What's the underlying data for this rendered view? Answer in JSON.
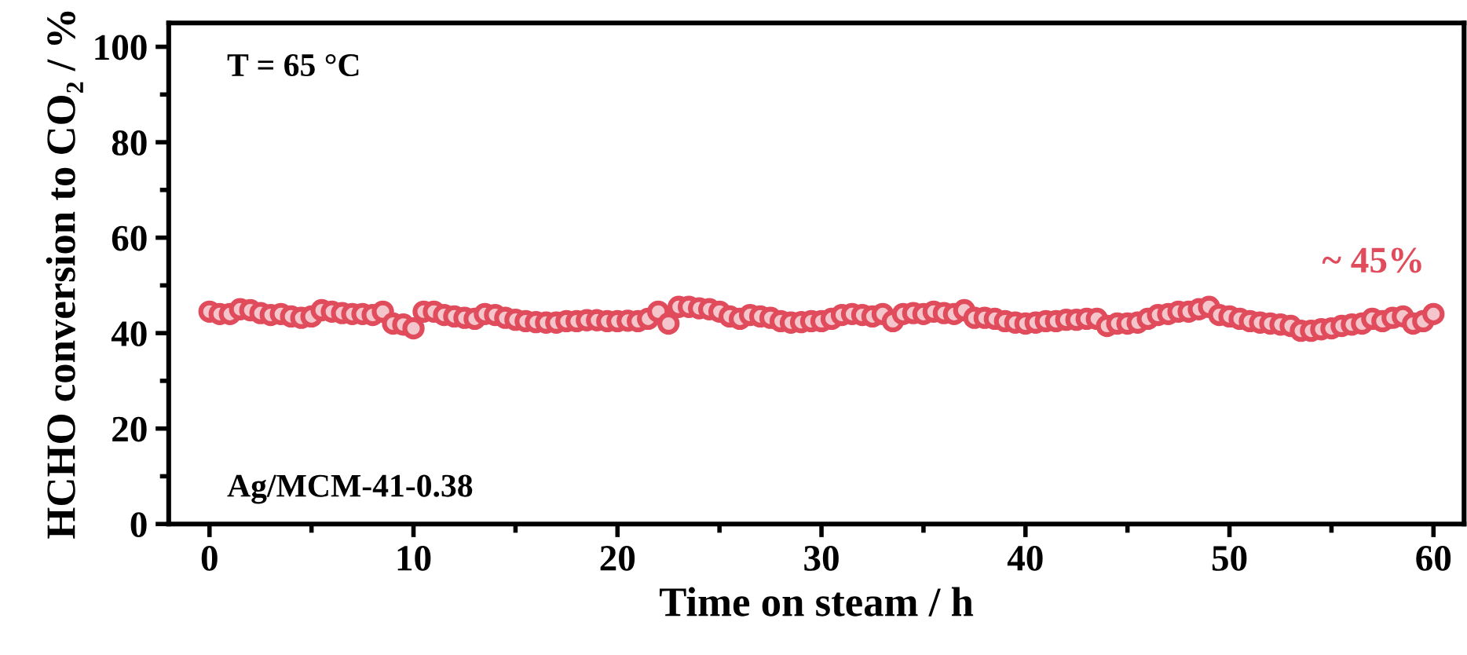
{
  "chart_data": {
    "type": "scatter",
    "xlabel": "Time on steam / h",
    "ylabel": "HCHO conversion to CO₂ / %",
    "annotations": [
      "T = 65 °C",
      "Ag/MCM-41-0.38",
      "~ 45%"
    ],
    "x": [
      0,
      0.5,
      1,
      1.5,
      2,
      2.5,
      3,
      3.5,
      4,
      4.5,
      5,
      5.5,
      6,
      6.5,
      7,
      7.5,
      8,
      8.5,
      9,
      9.5,
      10,
      10.5,
      11,
      11.5,
      12,
      12.5,
      13,
      13.5,
      14,
      14.5,
      15,
      15.5,
      16,
      16.5,
      17,
      17.5,
      18,
      18.5,
      19,
      19.5,
      20,
      20.5,
      21,
      21.5,
      22,
      22.5,
      23,
      23.5,
      24,
      24.5,
      25,
      25.5,
      26,
      26.5,
      27,
      27.5,
      28,
      28.5,
      29,
      29.5,
      30,
      30.5,
      31,
      31.5,
      32,
      32.5,
      33,
      33.5,
      34,
      34.5,
      35,
      35.5,
      36,
      36.5,
      37,
      37.5,
      38,
      38.5,
      39,
      39.5,
      40,
      40.5,
      41,
      41.5,
      42,
      42.5,
      43,
      43.5,
      44,
      44.5,
      45,
      45.5,
      46,
      46.5,
      47,
      47.5,
      48,
      48.5,
      49,
      49.5,
      50,
      50.5,
      51,
      51.5,
      52,
      52.5,
      53,
      53.5,
      54,
      54.5,
      55,
      55.5,
      56,
      56.5,
      57,
      57.5,
      58,
      58.5,
      59,
      59.5,
      60
    ],
    "series": [
      {
        "color": "#e04c5c",
        "values": [
          44.5,
          44,
          44,
          45,
          44.8,
          44.2,
          43.8,
          44,
          43.5,
          43.2,
          43.5,
          44.8,
          44.5,
          44.2,
          44,
          44,
          43.8,
          44.5,
          42,
          41.8,
          41,
          44.5,
          44.5,
          43.8,
          43.5,
          43.2,
          43,
          44,
          43.8,
          43.2,
          42.8,
          42.5,
          42.3,
          42.2,
          42.2,
          42.5,
          42.5,
          42.7,
          42.7,
          42.5,
          42.5,
          42.6,
          42.5,
          43,
          44.5,
          42,
          45.5,
          45.5,
          45.2,
          45,
          44.5,
          43.5,
          43,
          43.8,
          43.5,
          43.2,
          42.5,
          42.2,
          42.3,
          42.5,
          42.5,
          43,
          43.8,
          44,
          43.8,
          43.5,
          44,
          42.5,
          44,
          44.2,
          44,
          44.5,
          44.2,
          44,
          44.8,
          43.2,
          43.2,
          43,
          42.5,
          42.2,
          42,
          42.2,
          42.5,
          42.5,
          42.8,
          42.8,
          43,
          43,
          41.5,
          42,
          42,
          42.2,
          43,
          43.8,
          44,
          44.5,
          44.5,
          45,
          45.5,
          43.8,
          43.5,
          43,
          42.5,
          42.2,
          42,
          41.8,
          41.5,
          40.5,
          40.5,
          40.8,
          41,
          41.5,
          41.8,
          42,
          43,
          42.5,
          43.2,
          43.5,
          42,
          42.5,
          44
        ]
      }
    ],
    "marker": "circle",
    "xlim": [
      -2,
      61.5
    ],
    "ylim": [
      0,
      105
    ],
    "xticks": [
      0,
      10,
      20,
      30,
      40,
      50,
      60
    ],
    "yticks": [
      0,
      20,
      40,
      60,
      80,
      100
    ],
    "grid": false,
    "legend": false
  }
}
